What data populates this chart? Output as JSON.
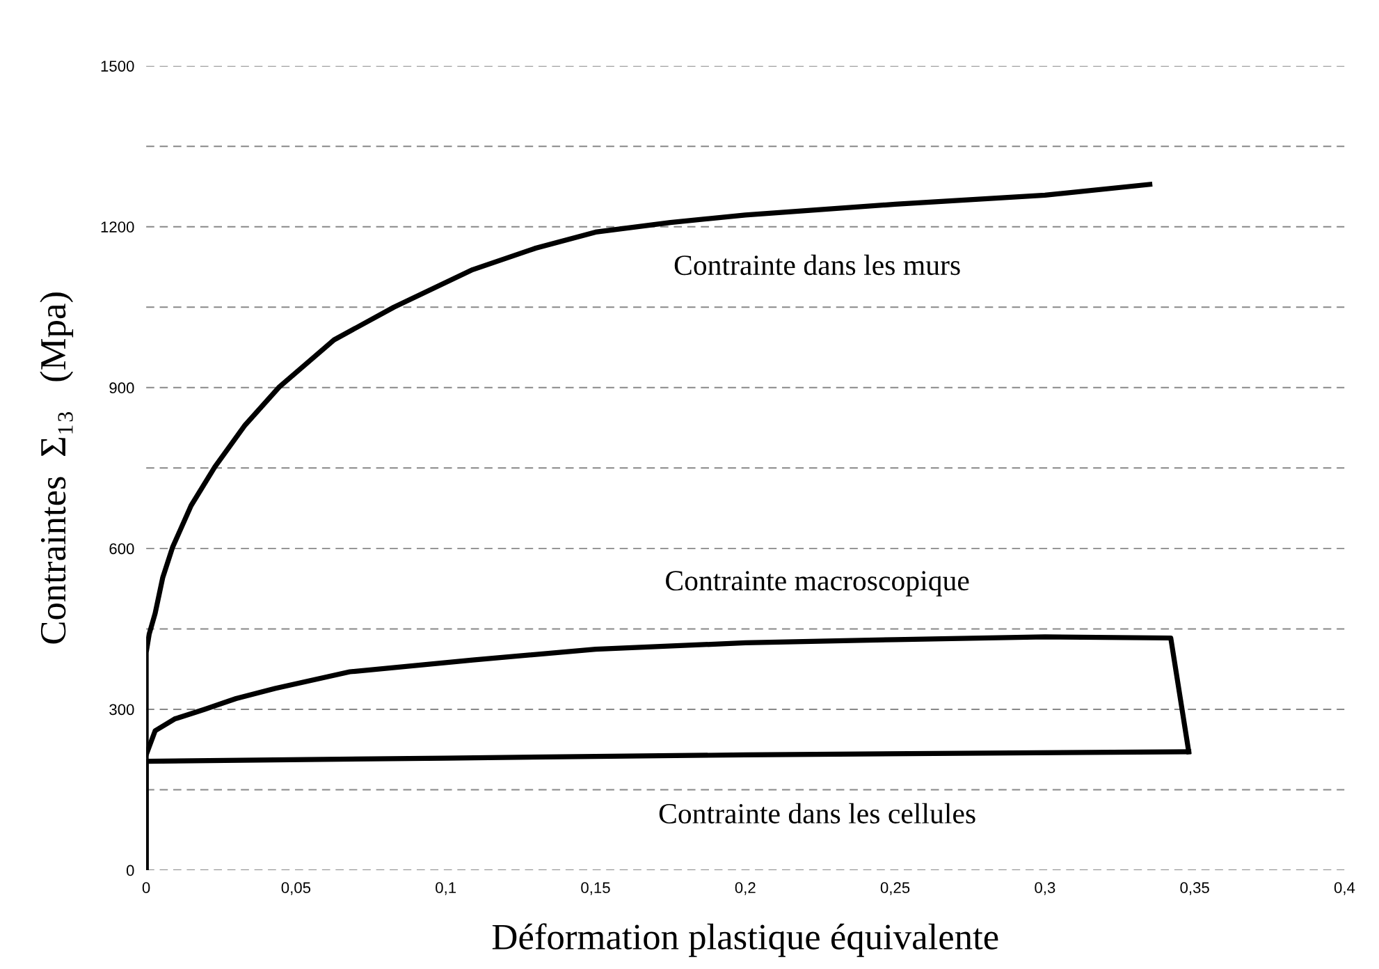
{
  "chart_data": {
    "type": "line",
    "xlabel": "Déformation plastique équivalente",
    "ylabel": "Contraintes  Σ₁₃   (Mpa)",
    "series": [
      {
        "name": "Contrainte dans les murs",
        "color": "#000000",
        "x": [
          0,
          0,
          0.001,
          0.003,
          0.0055,
          0.0088,
          0.015,
          0.0229,
          0.033,
          0.0444,
          0.0627,
          0.0827,
          0.109,
          0.13,
          0.15,
          0.175,
          0.2,
          0.25,
          0.3,
          0.335
        ],
        "values": [
          0,
          406,
          440,
          479,
          545,
          602,
          680,
          752,
          830,
          901,
          989,
          1050,
          1120,
          1160,
          1190,
          1208,
          1222,
          1242,
          1259,
          1279
        ]
      },
      {
        "name": "Contrainte macroscopique",
        "color": "#000000",
        "x": [
          0,
          0.003,
          0.0095,
          0.0195,
          0.03,
          0.043,
          0.068,
          0.109,
          0.15,
          0.2,
          0.25,
          0.3,
          0.342,
          0.348
        ],
        "values": [
          215,
          260,
          282,
          300,
          320,
          339,
          370,
          392,
          412,
          424,
          430,
          435,
          433,
          221
        ]
      },
      {
        "name": "Contrainte dans les cellules",
        "color": "#000000",
        "x": [
          0,
          0,
          0.1,
          0.2,
          0.348
        ],
        "values": [
          0,
          203,
          209,
          215,
          221
        ]
      }
    ],
    "xlim": [
      0,
      0.4
    ],
    "ylim": [
      0,
      1500
    ],
    "xticks": [
      0,
      {
        "value": 0.05,
        "label": "0,05"
      },
      {
        "value": 0.1,
        "label": "0,1"
      },
      {
        "value": 0.15,
        "label": "0,15"
      },
      {
        "value": 0.2,
        "label": "0,2"
      },
      {
        "value": 0.25,
        "label": "0,25"
      },
      {
        "value": 0.3,
        "label": "0,3"
      },
      {
        "value": 0.35,
        "label": "0,35"
      },
      {
        "value": 0.4,
        "label": "0,4"
      }
    ],
    "yticks": [
      0,
      {
        "value": 150,
        "label": null
      },
      300,
      {
        "value": 450,
        "label": null
      },
      600,
      {
        "value": 750,
        "label": null
      },
      900,
      {
        "value": 1050,
        "label": null
      },
      1200,
      {
        "value": 1350,
        "label": null
      },
      1500
    ],
    "grid": "y",
    "legend": false,
    "marker": "none",
    "line_style": "solid"
  }
}
